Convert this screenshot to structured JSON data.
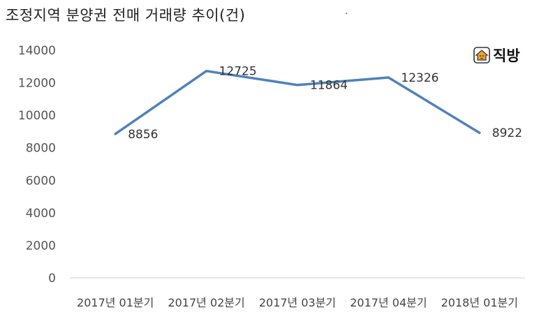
{
  "title": "조정지역 분양권 전매 거래량 추이(건)",
  "corner_mark": ".",
  "brand": {
    "name": "직방",
    "icon": "house-logo-icon",
    "accent": "#f0a12b"
  },
  "chart_data": {
    "type": "line",
    "title": "조정지역 분양권 전매 거래량 추이(건)",
    "categories": [
      "2017년 01분기",
      "2017년 02분기",
      "2017년 03분기",
      "2017년 04분기",
      "2018년 01분기"
    ],
    "series": [
      {
        "values": [
          8856,
          12725,
          11864,
          12326,
          8922
        ],
        "color": "#4f81bd"
      }
    ],
    "data_labels": [
      "8856",
      "12725",
      "11864",
      "12326",
      "8922"
    ],
    "y_ticks": [
      "0",
      "2000",
      "4000",
      "6000",
      "8000",
      "10000",
      "12000",
      "14000"
    ],
    "ylim": [
      0,
      14000
    ],
    "grid": false,
    "legend": "none"
  }
}
